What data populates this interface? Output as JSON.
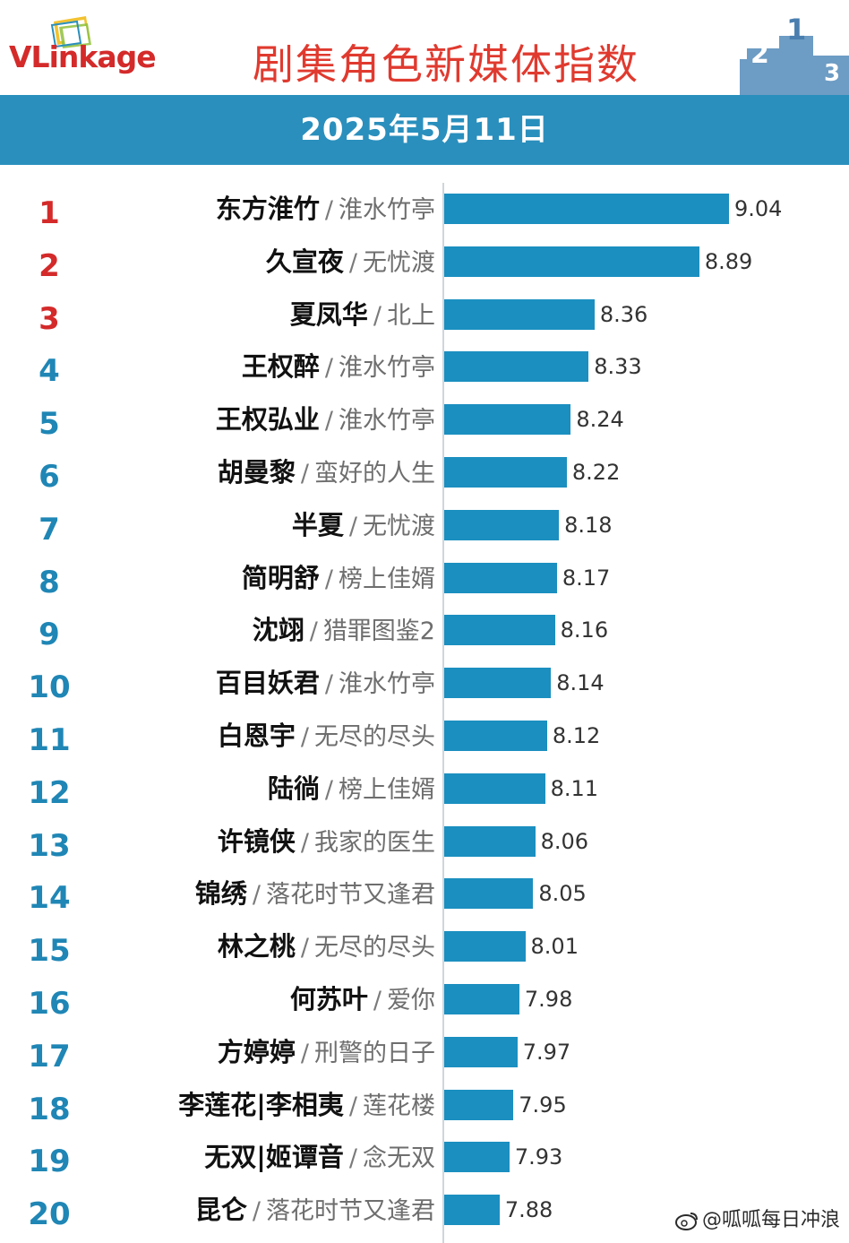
{
  "header": {
    "logo_text": "VLinkage",
    "title": "剧集角色新媒体指数",
    "date": "2025年5月11日",
    "podium_numbers": [
      "2",
      "1",
      "3"
    ]
  },
  "colors": {
    "title": "#e03a2f",
    "band": "#2a8fbd",
    "bar": "#1b8fc0",
    "rank_top3": "#d42a2a",
    "rank_rest": "#1f86b5"
  },
  "chart_data": {
    "type": "bar",
    "orientation": "horizontal",
    "title": "剧集角色新媒体指数",
    "subtitle": "2025年5月11日",
    "xlim": [
      7.6,
      9.17
    ],
    "items": [
      {
        "rank": "1",
        "name": "东方淮竹",
        "show": "淮水竹亭",
        "value": 9.04,
        "label": "9.04"
      },
      {
        "rank": "2",
        "name": "久宣夜",
        "show": "无忧渡",
        "value": 8.89,
        "label": "8.89"
      },
      {
        "rank": "3",
        "name": "夏凤华",
        "show": "北上",
        "value": 8.36,
        "label": "8.36"
      },
      {
        "rank": "4",
        "name": "王权醉",
        "show": "淮水竹亭",
        "value": 8.33,
        "label": "8.33"
      },
      {
        "rank": "5",
        "name": "王权弘业",
        "show": "淮水竹亭",
        "value": 8.24,
        "label": "8.24"
      },
      {
        "rank": "6",
        "name": "胡曼黎",
        "show": "蛮好的人生",
        "value": 8.22,
        "label": "8.22"
      },
      {
        "rank": "7",
        "name": "半夏",
        "show": "无忧渡",
        "value": 8.18,
        "label": "8.18"
      },
      {
        "rank": "8",
        "name": "简明舒",
        "show": "榜上佳婿",
        "value": 8.17,
        "label": "8.17"
      },
      {
        "rank": "9",
        "name": "沈翊",
        "show": "猎罪图鉴2",
        "value": 8.16,
        "label": "8.16"
      },
      {
        "rank": "10",
        "name": "百目妖君",
        "show": "淮水竹亭",
        "value": 8.14,
        "label": "8.14"
      },
      {
        "rank": "11",
        "name": "白恩宇",
        "show": "无尽的尽头",
        "value": 8.12,
        "label": "8.12"
      },
      {
        "rank": "12",
        "name": "陆徜",
        "show": "榜上佳婿",
        "value": 8.11,
        "label": "8.11"
      },
      {
        "rank": "13",
        "name": "许镜侠",
        "show": "我家的医生",
        "value": 8.06,
        "label": "8.06"
      },
      {
        "rank": "14",
        "name": "锦绣",
        "show": "落花时节又逢君",
        "value": 8.05,
        "label": "8.05"
      },
      {
        "rank": "15",
        "name": "林之桃",
        "show": "无尽的尽头",
        "value": 8.01,
        "label": "8.01"
      },
      {
        "rank": "16",
        "name": "何苏叶",
        "show": "爱你",
        "value": 7.98,
        "label": "7.98"
      },
      {
        "rank": "17",
        "name": "方婷婷",
        "show": "刑警的日子",
        "value": 7.97,
        "label": "7.97"
      },
      {
        "rank": "18",
        "name": "李莲花|李相夷",
        "show": "莲花楼",
        "value": 7.95,
        "label": "7.95"
      },
      {
        "rank": "19",
        "name": "无双|姬谭音",
        "show": "念无双",
        "value": 7.93,
        "label": "7.93"
      },
      {
        "rank": "20",
        "name": "昆仑",
        "show": "落花时节又逢君",
        "value": 7.88,
        "label": "7.88"
      }
    ]
  },
  "watermark": "@呱呱每日冲浪"
}
